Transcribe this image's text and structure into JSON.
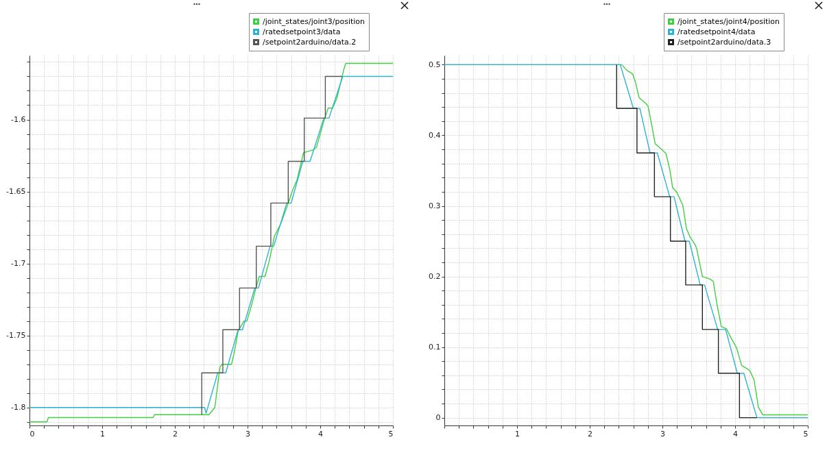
{
  "chart_data": [
    {
      "type": "line",
      "xlim": [
        0,
        5
      ],
      "ylim": [
        -1.8125,
        -1.5555
      ],
      "xticks": [
        0,
        {
          "value": 0.2,
          "label": null
        },
        {
          "value": 0.4,
          "label": null
        },
        {
          "value": 0.6,
          "label": null
        },
        {
          "value": 0.8,
          "label": null
        },
        1,
        {
          "value": 1.2,
          "label": null
        },
        {
          "value": 1.4,
          "label": null
        },
        {
          "value": 1.6,
          "label": null
        },
        {
          "value": 1.8,
          "label": null
        },
        2,
        {
          "value": 2.2,
          "label": null
        },
        {
          "value": 2.4,
          "label": null
        },
        {
          "value": 2.6,
          "label": null
        },
        {
          "value": 2.8,
          "label": null
        },
        3,
        {
          "value": 3.2,
          "label": null
        },
        {
          "value": 3.4,
          "label": null
        },
        {
          "value": 3.6,
          "label": null
        },
        {
          "value": 3.8,
          "label": null
        },
        4,
        {
          "value": 4.2,
          "label": null
        },
        {
          "value": 4.4,
          "label": null
        },
        {
          "value": 4.6,
          "label": null
        },
        {
          "value": 4.8,
          "label": null
        },
        5
      ],
      "yticks": [
        {
          "value": -1.81,
          "label": null
        },
        -1.8,
        {
          "value": -1.79,
          "label": null
        },
        {
          "value": -1.78,
          "label": null
        },
        {
          "value": -1.77,
          "label": null
        },
        {
          "value": -1.76,
          "label": null
        },
        -1.75,
        {
          "value": -1.74,
          "label": null
        },
        {
          "value": -1.73,
          "label": null
        },
        {
          "value": -1.72,
          "label": null
        },
        {
          "value": -1.71,
          "label": null
        },
        -1.7,
        {
          "value": -1.69,
          "label": null
        },
        {
          "value": -1.68,
          "label": null
        },
        {
          "value": -1.67,
          "label": null
        },
        {
          "value": -1.66,
          "label": null
        },
        -1.65,
        {
          "value": -1.64,
          "label": null
        },
        {
          "value": -1.63,
          "label": null
        },
        {
          "value": -1.62,
          "label": null
        },
        {
          "value": -1.61,
          "label": null
        },
        -1.6,
        {
          "value": -1.59,
          "label": null
        },
        {
          "value": -1.58,
          "label": null
        },
        {
          "value": -1.57,
          "label": null
        },
        {
          "value": -1.56,
          "label": null
        }
      ],
      "grid": true,
      "legend": "top right",
      "series": [
        {
          "name": "/joint_states/joint3/position",
          "color": "#3fcf3f",
          "x": [
            0,
            0.24,
            0.26,
            0.3,
            1.7,
            1.72,
            2.47,
            2.55,
            2.62,
            2.65,
            2.78,
            2.82,
            2.87,
            2.95,
            2.99,
            3.05,
            3.11,
            3.16,
            3.24,
            3.3,
            3.37,
            3.46,
            3.56,
            3.62,
            3.68,
            3.77,
            3.91,
            3.95,
            4.05,
            4.11,
            4.17,
            4.23,
            4.32,
            4.35,
            5
          ],
          "values": [
            -1.81,
            -1.81,
            -1.807,
            -1.807,
            -1.807,
            -1.805,
            -1.805,
            -1.8,
            -1.772,
            -1.77,
            -1.77,
            -1.761,
            -1.747,
            -1.74,
            -1.74,
            -1.73,
            -1.718,
            -1.709,
            -1.709,
            -1.698,
            -1.681,
            -1.672,
            -1.658,
            -1.649,
            -1.642,
            -1.623,
            -1.621,
            -1.619,
            -1.601,
            -1.592,
            -1.592,
            -1.585,
            -1.566,
            -1.561,
            -1.561
          ]
        },
        {
          "name": "/ratedsetpoint3/data",
          "color": "#2bb3d1",
          "x": [
            0,
            2.41,
            2.43,
            2.59,
            2.7,
            2.87,
            2.93,
            3.1,
            3.15,
            3.31,
            3.36,
            3.54,
            3.6,
            3.76,
            3.86,
            4.05,
            4.12,
            4.31,
            5
          ],
          "values": [
            -1.8,
            -1.8,
            -1.804,
            -1.776,
            -1.776,
            -1.746,
            -1.746,
            -1.717,
            -1.717,
            -1.688,
            -1.688,
            -1.658,
            -1.658,
            -1.629,
            -1.629,
            -1.599,
            -1.599,
            -1.57,
            -1.57
          ]
        },
        {
          "name": "/setpoint2arduino/data.2",
          "color": "#555555",
          "x": [
            2.37,
            2.37,
            2.66,
            2.66,
            2.89,
            2.89,
            3.12,
            3.12,
            3.32,
            3.32,
            3.56,
            3.56,
            3.78,
            3.78,
            4.07,
            4.07,
            4.3
          ],
          "values": [
            -1.805,
            -1.776,
            -1.776,
            -1.746,
            -1.746,
            -1.717,
            -1.717,
            -1.688,
            -1.688,
            -1.658,
            -1.658,
            -1.629,
            -1.629,
            -1.599,
            -1.599,
            -1.57,
            -1.57
          ]
        }
      ]
    },
    {
      "type": "line",
      "xlim": [
        0,
        5
      ],
      "ylim": [
        -0.011,
        0.513
      ],
      "xticks": [
        {
          "value": 0,
          "label": null
        },
        {
          "value": 0.2,
          "label": null
        },
        {
          "value": 0.4,
          "label": null
        },
        {
          "value": 0.6,
          "label": null
        },
        {
          "value": 0.8,
          "label": null
        },
        1,
        {
          "value": 1.2,
          "label": null
        },
        {
          "value": 1.4,
          "label": null
        },
        {
          "value": 1.6,
          "label": null
        },
        {
          "value": 1.8,
          "label": null
        },
        2,
        {
          "value": 2.2,
          "label": null
        },
        {
          "value": 2.4,
          "label": null
        },
        {
          "value": 2.6,
          "label": null
        },
        {
          "value": 2.8,
          "label": null
        },
        3,
        {
          "value": 3.2,
          "label": null
        },
        {
          "value": 3.4,
          "label": null
        },
        {
          "value": 3.6,
          "label": null
        },
        {
          "value": 3.8,
          "label": null
        },
        4,
        {
          "value": 4.2,
          "label": null
        },
        {
          "value": 4.4,
          "label": null
        },
        {
          "value": 4.6,
          "label": null
        },
        {
          "value": 4.8,
          "label": null
        },
        5
      ],
      "yticks": [
        0,
        {
          "value": 0.02,
          "label": null
        },
        {
          "value": 0.04,
          "label": null
        },
        {
          "value": 0.06,
          "label": null
        },
        {
          "value": 0.08,
          "label": null
        },
        0.1,
        {
          "value": 0.12,
          "label": null
        },
        {
          "value": 0.14,
          "label": null
        },
        {
          "value": 0.16,
          "label": null
        },
        {
          "value": 0.18,
          "label": null
        },
        0.2,
        {
          "value": 0.22,
          "label": null
        },
        {
          "value": 0.24,
          "label": null
        },
        {
          "value": 0.26,
          "label": null
        },
        {
          "value": 0.28,
          "label": null
        },
        0.3,
        {
          "value": 0.32,
          "label": null
        },
        {
          "value": 0.34,
          "label": null
        },
        {
          "value": 0.36,
          "label": null
        },
        {
          "value": 0.38,
          "label": null
        },
        0.4,
        {
          "value": 0.42,
          "label": null
        },
        {
          "value": 0.44,
          "label": null
        },
        {
          "value": 0.46,
          "label": null
        },
        {
          "value": 0.48,
          "label": null
        },
        0.5
      ],
      "grid": true,
      "legend": "top right",
      "series": [
        {
          "name": "/joint_states/joint4/position",
          "color": "#3fcf3f",
          "x": [
            0,
            2.44,
            2.51,
            2.59,
            2.63,
            2.68,
            2.75,
            2.8,
            2.84,
            2.9,
            2.99,
            3.05,
            3.1,
            3.14,
            3.2,
            3.28,
            3.33,
            3.38,
            3.45,
            3.47,
            3.55,
            3.66,
            3.7,
            3.75,
            3.81,
            3.88,
            3.96,
            4.02,
            4.09,
            4.2,
            4.26,
            4.32,
            4.38,
            5
          ],
          "values": [
            0.5,
            0.5,
            0.492,
            0.487,
            0.475,
            0.453,
            0.447,
            0.442,
            0.422,
            0.388,
            0.38,
            0.374,
            0.352,
            0.326,
            0.319,
            0.301,
            0.268,
            0.256,
            0.245,
            0.24,
            0.2,
            0.196,
            0.193,
            0.161,
            0.129,
            0.126,
            0.11,
            0.099,
            0.074,
            0.067,
            0.054,
            0.015,
            0.004,
            0.004
          ]
        },
        {
          "name": "/ratedsetpoint4/data",
          "color": "#2bb3d1",
          "x": [
            0,
            2.42,
            2.6,
            2.69,
            2.83,
            2.93,
            3.1,
            3.16,
            3.31,
            3.37,
            3.52,
            3.58,
            3.76,
            3.87,
            4.03,
            4.12,
            4.3,
            5
          ],
          "values": [
            0.5,
            0.5,
            0.438,
            0.438,
            0.375,
            0.375,
            0.313,
            0.313,
            0.25,
            0.25,
            0.188,
            0.188,
            0.125,
            0.125,
            0.063,
            0.063,
            0,
            0
          ]
        },
        {
          "name": "/setpoint2arduino/data.3",
          "color": "#222222",
          "x": [
            2.37,
            2.37,
            2.65,
            2.65,
            2.89,
            2.89,
            3.11,
            3.11,
            3.32,
            3.32,
            3.55,
            3.55,
            3.77,
            3.77,
            4.06,
            4.06,
            4.3
          ],
          "values": [
            0.5,
            0.438,
            0.438,
            0.375,
            0.375,
            0.313,
            0.313,
            0.25,
            0.25,
            0.188,
            0.188,
            0.125,
            0.125,
            0.063,
            0.063,
            0,
            0
          ]
        }
      ]
    }
  ]
}
